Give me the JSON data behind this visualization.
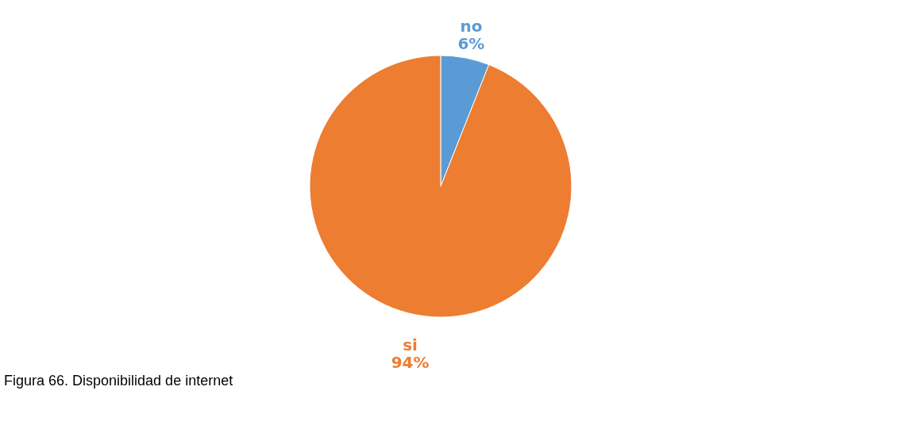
{
  "chart_data": {
    "type": "pie",
    "categories": [
      "no",
      "si"
    ],
    "values": [
      6,
      94
    ],
    "colors": [
      "#5b9bd5",
      "#ed7d31"
    ],
    "value_labels": [
      "6%",
      "94%"
    ],
    "annotations": [
      "Figura 66.  Disponibilidad de internet"
    ]
  }
}
